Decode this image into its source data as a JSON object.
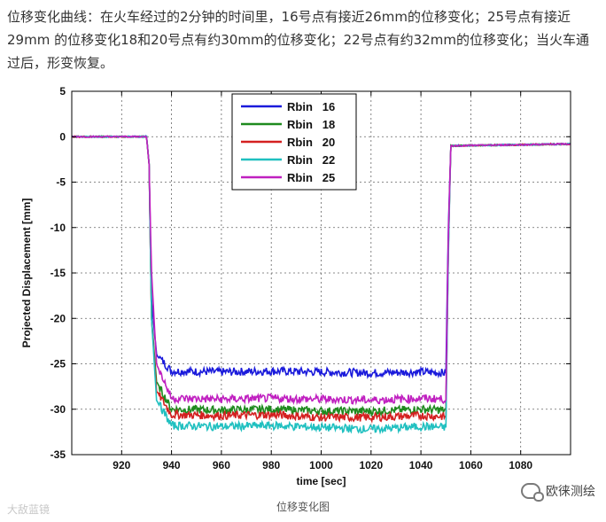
{
  "article": {
    "intro_text": "位移变化曲线：在火车经过的2分钟的时间里，16号点有接近26mm的位移变化；25号点有接近29mm 的位移变化18和20号点有约30mm的位移变化；22号点有约32mm的位移变化；当火车通过后，形变恢复。",
    "caption": "位移变化图",
    "watermark_left": "大敌蓝镜",
    "watermark_right": "欧徕测绘"
  },
  "chart_data": {
    "type": "line",
    "xlabel": "time [sec]",
    "ylabel": "Projected Displacement [mm]",
    "xlim": [
      900,
      1100
    ],
    "ylim": [
      -35,
      5
    ],
    "xticks": [
      920,
      940,
      960,
      980,
      1000,
      1020,
      1040,
      1060,
      1080
    ],
    "yticks": [
      5,
      0,
      -5,
      -10,
      -15,
      -20,
      -25,
      -30,
      -35
    ],
    "grid": true,
    "legend_position": "top-center",
    "series": [
      {
        "name": "Rbin   16",
        "color": "#1a1adb",
        "x": [
          900,
          930,
          931,
          932,
          934,
          940,
          960,
          980,
          1000,
          1020,
          1040,
          1050,
          1051,
          1052,
          1100
        ],
        "y": [
          0,
          0,
          -3,
          -18,
          -24,
          -25.8,
          -25.9,
          -25.8,
          -25.9,
          -26.0,
          -25.9,
          -26.0,
          -10,
          -1,
          -0.8
        ]
      },
      {
        "name": "Rbin   18",
        "color": "#1e8a1e",
        "x": [
          900,
          930,
          931,
          932,
          934,
          940,
          960,
          980,
          1000,
          1020,
          1040,
          1050,
          1051,
          1052,
          1100
        ],
        "y": [
          0,
          0,
          -3,
          -20,
          -27,
          -30.0,
          -30.1,
          -30.0,
          -30.2,
          -30.2,
          -30.0,
          -30.1,
          -12,
          -1,
          -0.8
        ]
      },
      {
        "name": "Rbin   20",
        "color": "#d42020",
        "x": [
          900,
          930,
          931,
          932,
          934,
          940,
          960,
          980,
          1000,
          1020,
          1040,
          1050,
          1051,
          1052,
          1100
        ],
        "y": [
          0,
          0,
          -3,
          -20,
          -28,
          -30.6,
          -30.7,
          -30.6,
          -30.9,
          -30.9,
          -30.7,
          -30.8,
          -12,
          -1,
          -0.8
        ]
      },
      {
        "name": "Rbin   22",
        "color": "#20c0c0",
        "x": [
          900,
          930,
          931,
          932,
          934,
          940,
          960,
          980,
          1000,
          1020,
          1040,
          1050,
          1051,
          1052,
          1100
        ],
        "y": [
          0,
          0,
          -3,
          -20,
          -29,
          -31.8,
          -31.9,
          -31.8,
          -32.0,
          -32.2,
          -31.9,
          -32.0,
          -13,
          -1,
          -0.8
        ]
      },
      {
        "name": "Rbin   25",
        "color": "#c020c0",
        "x": [
          900,
          930,
          931,
          932,
          934,
          940,
          960,
          980,
          1000,
          1020,
          1040,
          1050,
          1051,
          1052,
          1100
        ],
        "y": [
          0,
          0,
          -3,
          -15,
          -25,
          -28.8,
          -28.9,
          -28.8,
          -28.9,
          -29.0,
          -28.8,
          -28.9,
          -11,
          -1,
          -0.8
        ]
      }
    ]
  }
}
